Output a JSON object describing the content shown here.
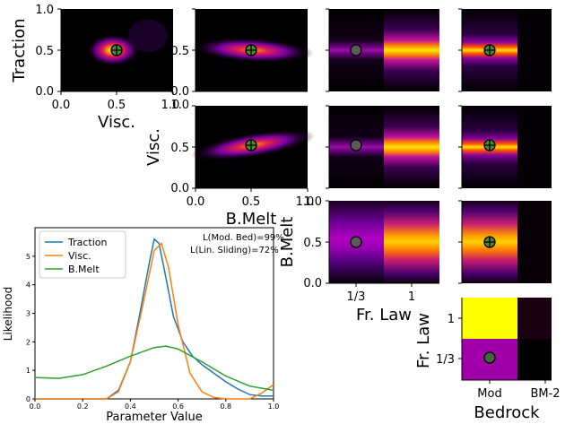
{
  "colors": {
    "traction": "#1f77b4",
    "visc": "#ff7f0e",
    "bmelt": "#2ca02c",
    "marker_fill": "#3a6b3a",
    "marker_fill_gray": "#5a5a5a"
  },
  "chart_data": [
    {
      "type": "heatmap",
      "id": "traction-visc",
      "ylabel": "Traction",
      "xlabel": "Visc.",
      "xticks": [
        "0.0",
        "0.5",
        "1.0"
      ],
      "yticks": [
        "0.0",
        "0.5",
        "1.0"
      ],
      "marker": [
        0.5,
        0.5
      ]
    },
    {
      "type": "heatmap",
      "id": "traction-bmelt",
      "xticks": [
        "0.0",
        "0.5",
        "1.0"
      ],
      "yticks": [
        "0.0",
        "0.5",
        "1.0"
      ],
      "marker": [
        0.5,
        0.5
      ]
    },
    {
      "type": "heatmap",
      "id": "visc-bmelt",
      "ylabel": "Visc.",
      "xlabel": "B.Melt",
      "xticks": [
        "0.0",
        "0.5",
        "1.0"
      ],
      "yticks": [
        "0.0",
        "0.5",
        "1.0"
      ],
      "marker": [
        0.5,
        0.5
      ]
    },
    {
      "type": "heatmap",
      "id": "frlaw-panels",
      "ylabel": "B.Melt",
      "xlabel": "Fr. Law",
      "xticks": [
        "1/3",
        "1"
      ],
      "yticks": [
        "0.0",
        "0.5",
        "1.0"
      ]
    },
    {
      "type": "heatmap",
      "id": "frlaw-bedrock",
      "ylabel": "Fr. Law",
      "xlabel": "Bedrock",
      "xticks": [
        "Mod",
        "BM-2"
      ],
      "yticks": [
        "1",
        "1/3"
      ]
    },
    {
      "type": "line",
      "id": "marginals",
      "xlabel": "Parameter Value",
      "ylabel": "Likelihood",
      "xlim": [
        0.0,
        1.0
      ],
      "ylim": [
        0,
        6
      ],
      "xticks": [
        "0.0",
        "0.2",
        "0.4",
        "0.6",
        "0.8",
        "1.0"
      ],
      "yticks": [
        "0",
        "1",
        "2",
        "3",
        "4",
        "5"
      ],
      "annotations": [
        "L(Mod. Bed)=99%",
        "L(Lin. Sliding)=72%"
      ],
      "series": [
        {
          "name": "Traction",
          "x": [
            0.0,
            0.3,
            0.35,
            0.4,
            0.44,
            0.48,
            0.5,
            0.52,
            0.55,
            0.58,
            0.62,
            0.66,
            0.7,
            0.75,
            0.8,
            0.85,
            0.9,
            0.95,
            1.0
          ],
          "y": [
            0.0,
            0.0,
            0.3,
            1.3,
            3.0,
            4.8,
            5.6,
            5.45,
            4.2,
            2.9,
            2.0,
            1.5,
            1.2,
            0.9,
            0.6,
            0.35,
            0.15,
            0.1,
            0.1
          ]
        },
        {
          "name": "Visc.",
          "x": [
            0.0,
            0.3,
            0.35,
            0.4,
            0.45,
            0.5,
            0.53,
            0.56,
            0.6,
            0.65,
            0.7,
            0.75,
            0.8,
            0.85,
            0.9,
            0.95,
            1.0
          ],
          "y": [
            0.0,
            0.0,
            0.25,
            1.3,
            3.2,
            5.2,
            5.45,
            4.6,
            2.6,
            0.9,
            0.25,
            0.05,
            0.0,
            0.0,
            0.0,
            0.2,
            0.5
          ]
        },
        {
          "name": "B.Melt",
          "x": [
            0.0,
            0.1,
            0.2,
            0.3,
            0.4,
            0.5,
            0.55,
            0.6,
            0.7,
            0.8,
            0.9,
            1.0
          ],
          "y": [
            0.75,
            0.72,
            0.85,
            1.15,
            1.5,
            1.8,
            1.85,
            1.75,
            1.3,
            0.8,
            0.45,
            0.3
          ]
        }
      ]
    }
  ]
}
